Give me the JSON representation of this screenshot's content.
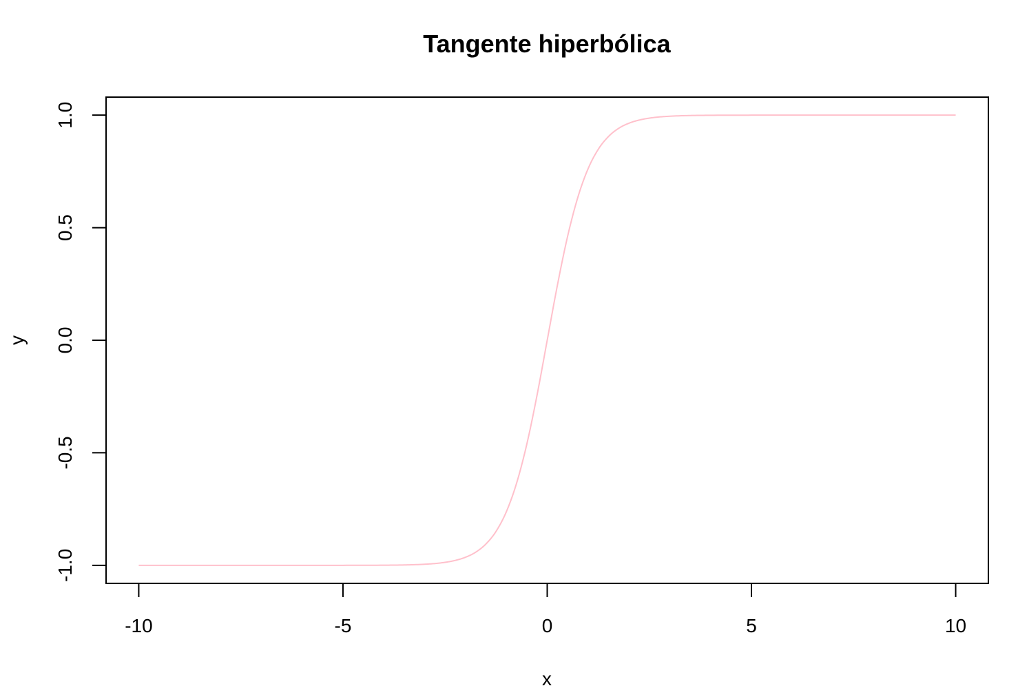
{
  "chart_data": {
    "type": "line",
    "title": "Tangente hiperbólica",
    "xlabel": "x",
    "ylabel": "y",
    "xlim": [
      -10.8,
      10.8
    ],
    "ylim": [
      -1.08,
      1.08
    ],
    "x_ticks": [
      -10,
      -5,
      0,
      5,
      10
    ],
    "x_tick_labels": [
      "-10",
      "-5",
      "0",
      "5",
      "10"
    ],
    "y_ticks": [
      -1.0,
      -0.5,
      0.0,
      0.5,
      1.0
    ],
    "y_tick_labels": [
      "-1.0",
      "-0.5",
      "0.0",
      "0.5",
      "1.0"
    ],
    "grid": false,
    "series": [
      {
        "color": "#ffc0cb",
        "x": [
          -10,
          -9,
          -8,
          -7,
          -6,
          -5,
          -4,
          -3.5,
          -3,
          -2.75,
          -2.5,
          -2.25,
          -2,
          -1.75,
          -1.5,
          -1.25,
          -1,
          -0.75,
          -0.5,
          -0.25,
          0,
          0.25,
          0.5,
          0.75,
          1,
          1.25,
          1.5,
          1.75,
          2,
          2.25,
          2.5,
          2.75,
          3,
          3.5,
          4,
          5,
          6,
          7,
          8,
          9,
          10
        ],
        "y": [
          -1.0,
          -1.0,
          -1.0,
          -1.0,
          -1.0,
          -0.9999,
          -0.9993,
          -0.9982,
          -0.9951,
          -0.9919,
          -0.9866,
          -0.978,
          -0.964,
          -0.9414,
          -0.9051,
          -0.8483,
          -0.7616,
          -0.6351,
          -0.4621,
          -0.2449,
          0.0,
          0.2449,
          0.4621,
          0.6351,
          0.7616,
          0.8483,
          0.9051,
          0.9414,
          0.964,
          0.978,
          0.9866,
          0.9919,
          0.9951,
          0.9982,
          0.9993,
          0.9999,
          1.0,
          1.0,
          1.0,
          1.0,
          1.0
        ]
      }
    ]
  }
}
